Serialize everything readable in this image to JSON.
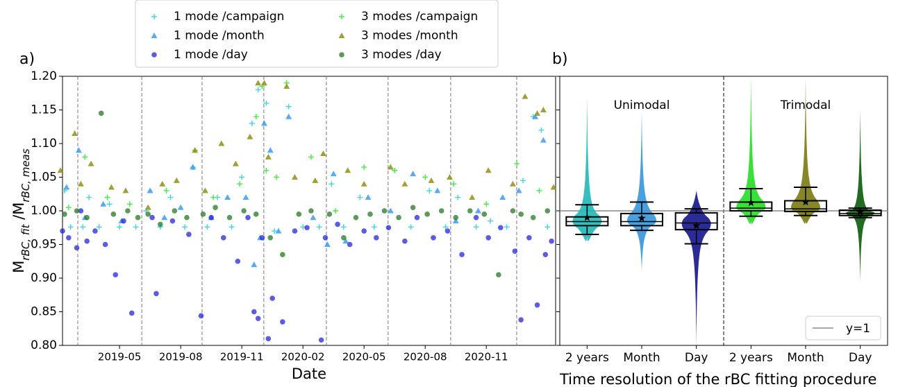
{
  "chart_data": [
    {
      "type": "scatter",
      "panel_label": "a)",
      "x_label": "Date",
      "y_label": [
        "M",
        "rBC, fit",
        " /M",
        "rBC, meas"
      ],
      "xlim": [
        0.2,
        24.4
      ],
      "xticks": [
        {
          "value": 3,
          "label": "2019-05"
        },
        {
          "value": 6,
          "label": "2019-08"
        },
        {
          "value": 9,
          "label": "2019-11"
        },
        {
          "value": 12,
          "label": "2020-02"
        },
        {
          "value": 15,
          "label": "2020-05"
        },
        {
          "value": 18,
          "label": "2020-08"
        },
        {
          "value": 21,
          "label": "2020-11"
        }
      ],
      "ylim": [
        0.8,
        1.2
      ],
      "yticks": [
        {
          "value": 0.8,
          "label": "0.80"
        },
        0.85,
        {
          "value": 0.9,
          "label": "0.90"
        },
        0.95,
        {
          "value": 1.0,
          "label": "1.00"
        },
        1.05,
        {
          "value": 1.1,
          "label": "1.10"
        },
        1.15,
        {
          "value": 1.2,
          "label": "1.20"
        }
      ],
      "campaign_boundaries": [
        0.95,
        4.09,
        7.05,
        10.08,
        13.15,
        16.18,
        19.25,
        22.49
      ],
      "series": [
        {
          "name": "1 mode /campaign",
          "marker": "plus",
          "color": "#3fd6e0",
          "x": [
            0.3,
            0.6,
            1.2,
            1.5,
            2.0,
            2.5,
            3.0,
            3.8,
            4.3,
            5.0,
            5.5,
            6.2,
            6.6,
            7.3,
            7.8,
            8.5,
            9.0,
            9.5,
            9.8,
            10.2,
            10.6,
            11.3,
            12.0,
            12.8,
            13.4,
            14.0,
            14.8,
            15.5,
            16.5,
            17.3,
            18.2,
            19.0,
            19.6,
            20.5,
            21.2,
            22.0,
            22.8,
            23.3,
            23.7,
            24.0
          ],
          "values": [
            1.03,
            0.976,
            0.976,
            1.02,
            0.976,
            1.01,
            0.976,
            0.976,
            1.0,
            0.976,
            1.02,
            0.976,
            1.065,
            0.976,
            1.02,
            0.976,
            1.05,
            1.13,
            1.18,
            1.16,
            0.97,
            1.155,
            0.976,
            0.976,
            1.04,
            0.976,
            1.02,
            0.976,
            1.06,
            0.976,
            1.03,
            0.976,
            1.02,
            0.976,
            0.985,
            0.976,
            1.045,
            1.14,
            1.12,
            0.976
          ]
        },
        {
          "name": "1 mode /month",
          "marker": "triangle",
          "color": "#3a9cf0",
          "x": [
            0.4,
            1.0,
            1.3,
            2.2,
            3.1,
            4.5,
            5.2,
            6.0,
            6.6,
            7.5,
            8.3,
            9.2,
            9.6,
            9.9,
            10.1,
            10.4,
            10.8,
            11.3,
            12.5,
            13.2,
            13.5,
            14.1,
            15.2,
            16.3,
            17.4,
            18.6,
            19.5,
            20.6,
            21.8,
            22.6,
            23.4,
            23.8
          ],
          "values": [
            1.035,
            1.09,
            0.99,
            1.01,
            0.985,
            1.03,
            0.99,
            1.005,
            1.065,
            0.99,
            1.02,
            1.02,
            0.92,
            0.96,
            1.13,
            1.09,
            0.97,
            1.14,
            0.99,
            0.95,
            1.055,
            0.955,
            1.02,
            1.0,
            1.055,
            1.03,
            0.985,
            1.0,
            1.02,
            1.03,
            1.14,
            1.105
          ]
        },
        {
          "name": "1 mode /day",
          "marker": "circle",
          "color": "#2626d8",
          "x": [
            0.2,
            0.5,
            0.9,
            1.1,
            1.4,
            1.8,
            2.3,
            2.8,
            3.2,
            3.6,
            4.6,
            4.8,
            5.6,
            6.4,
            7.0,
            7.5,
            8.1,
            8.8,
            9.3,
            9.6,
            9.8,
            10.0,
            10.3,
            10.5,
            11.0,
            11.6,
            12.2,
            12.9,
            13.1,
            13.7,
            14.3,
            15.0,
            15.6,
            16.2,
            17.0,
            17.6,
            18.4,
            19.1,
            19.8,
            20.5,
            21.1,
            21.7,
            22.4,
            22.7,
            23.1,
            23.5,
            23.9,
            24.2
          ],
          "values": [
            0.97,
            0.96,
            0.945,
            1.0,
            0.955,
            0.97,
            0.95,
            0.905,
            0.985,
            0.848,
            0.99,
            0.877,
            0.985,
            0.965,
            0.844,
            0.99,
            0.96,
            0.925,
            0.99,
            0.85,
            0.84,
            0.96,
            0.81,
            0.87,
            0.835,
            0.97,
            0.975,
            0.808,
            0.96,
            0.98,
            0.95,
            0.97,
            0.96,
            0.975,
            0.955,
            0.99,
            0.96,
            0.97,
            0.935,
            0.99,
            0.96,
            0.975,
            0.94,
            0.838,
            0.96,
            0.86,
            0.935,
            0.955
          ]
        },
        {
          "name": "3 modes /campaign",
          "marker": "plus",
          "color": "#3cf03c",
          "x": [
            0.5,
            1.3,
            2.4,
            3.5,
            5.3,
            6.7,
            7.6,
            8.9,
            9.7,
            10.0,
            10.2,
            10.7,
            11.2,
            12.4,
            13.6,
            15.0,
            16.5,
            18.0,
            19.4,
            21.0,
            22.5,
            23.6
          ],
          "values": [
            1.005,
            1.08,
            1.02,
            1.01,
            1.03,
            1.09,
            1.02,
            1.04,
            1.14,
            1.185,
            1.06,
            1.05,
            1.19,
            1.08,
            1.0,
            1.065,
            1.06,
            1.05,
            1.04,
            1.01,
            1.07,
            1.03
          ]
        },
        {
          "name": "3 modes /month",
          "marker": "triangle",
          "color": "#8f8f10",
          "x": [
            0.1,
            0.8,
            1.1,
            1.6,
            2.6,
            3.3,
            4.4,
            5.1,
            5.8,
            6.7,
            7.2,
            8.0,
            8.7,
            9.4,
            9.8,
            10.1,
            10.3,
            11.2,
            11.6,
            12.6,
            13.0,
            14.2,
            15.0,
            16.3,
            17.0,
            18.3,
            19.2,
            20.3,
            21.1,
            22.3,
            22.9,
            23.5,
            23.8,
            24.3
          ],
          "values": [
            1.06,
            1.115,
            1.04,
            1.07,
            1.035,
            1.03,
            1.005,
            1.04,
            1.045,
            1.09,
            1.03,
            1.1,
            1.07,
            1.11,
            1.19,
            1.19,
            1.08,
            1.185,
            1.05,
            1.045,
            1.085,
            1.06,
            1.04,
            1.065,
            1.04,
            1.045,
            1.05,
            1.02,
            1.06,
            1.04,
            1.17,
            1.145,
            1.15,
            1.035
          ]
        },
        {
          "name": "3 modes /day",
          "marker": "circle",
          "color": "#237a23",
          "x": [
            0.3,
            0.9,
            1.4,
            2.1,
            2.7,
            3.4,
            3.9,
            4.4,
            5.0,
            5.7,
            6.3,
            7.1,
            7.7,
            8.4,
            9.1,
            9.7,
            10.4,
            11.0,
            11.8,
            12.4,
            13.3,
            14.0,
            14.6,
            15.3,
            16.0,
            16.7,
            17.4,
            18.1,
            18.8,
            19.5,
            20.2,
            20.9,
            21.6,
            22.3,
            22.7,
            23.3,
            24.0
          ],
          "values": [
            0.995,
            1.0,
            0.99,
            1.145,
            0.995,
            1.0,
            0.99,
            0.995,
            0.98,
            1.0,
            0.99,
            0.995,
            1.005,
            0.99,
            1.0,
            0.995,
            0.96,
            0.935,
            0.995,
            1.0,
            0.995,
            0.96,
            0.99,
            0.995,
            1.0,
            0.99,
            1.005,
            0.995,
            1.0,
            0.99,
            1.0,
            0.995,
            0.905,
            1.0,
            0.995,
            0.99,
            1.0
          ]
        }
      ]
    },
    {
      "type": "violin",
      "panel_label": "b)",
      "x_label": "Time resolution of the rBC fitting procedure",
      "categories": [
        "2 years",
        "Month",
        "Day",
        "2 years",
        "Month",
        "Day"
      ],
      "group_labels": [
        "Unimodal",
        "Trimodal"
      ],
      "ylim": [
        0.8,
        1.2
      ],
      "yticks": [
        0.8,
        0.85,
        0.9,
        0.95,
        1.0,
        1.05,
        1.1,
        1.15,
        1.2
      ],
      "reference_line": {
        "value": 1,
        "label": "y=1",
        "color": "#888888"
      },
      "violins": [
        {
          "color": "#1fb8b8",
          "min": 0.962,
          "max": 1.17,
          "q1": 0.978,
          "median": 0.984,
          "q3": 0.991,
          "whisker_low": 0.965,
          "whisker_high": 1.009,
          "mean": 0.99
        },
        {
          "color": "#3596dc",
          "min": 0.91,
          "max": 1.15,
          "q1": 0.978,
          "median": 0.984,
          "q3": 0.996,
          "whisker_low": 0.971,
          "whisker_high": 1.013,
          "mean": 0.989
        },
        {
          "color": "#14148c",
          "min": 0.8,
          "max": 1.03,
          "q1": 0.972,
          "median": 0.982,
          "q3": 0.997,
          "whisker_low": 0.951,
          "whisker_high": 1.003,
          "mean": 0.978
        },
        {
          "color": "#22dd22",
          "min": 0.985,
          "max": 1.2,
          "q1": 1.0,
          "median": 1.004,
          "q3": 1.013,
          "whisker_low": 0.992,
          "whisker_high": 1.033,
          "mean": 1.012
        },
        {
          "color": "#7a7a12",
          "min": 0.985,
          "max": 1.2,
          "q1": 0.999,
          "median": 1.003,
          "q3": 1.015,
          "whisker_low": 0.993,
          "whisker_high": 1.035,
          "mean": 1.013
        },
        {
          "color": "#0b5a0b",
          "min": 0.895,
          "max": 1.15,
          "q1": 0.993,
          "median": 0.996,
          "q3": 1.001,
          "whisker_low": 0.99,
          "whisker_high": 1.004,
          "mean": 0.998
        }
      ]
    }
  ]
}
